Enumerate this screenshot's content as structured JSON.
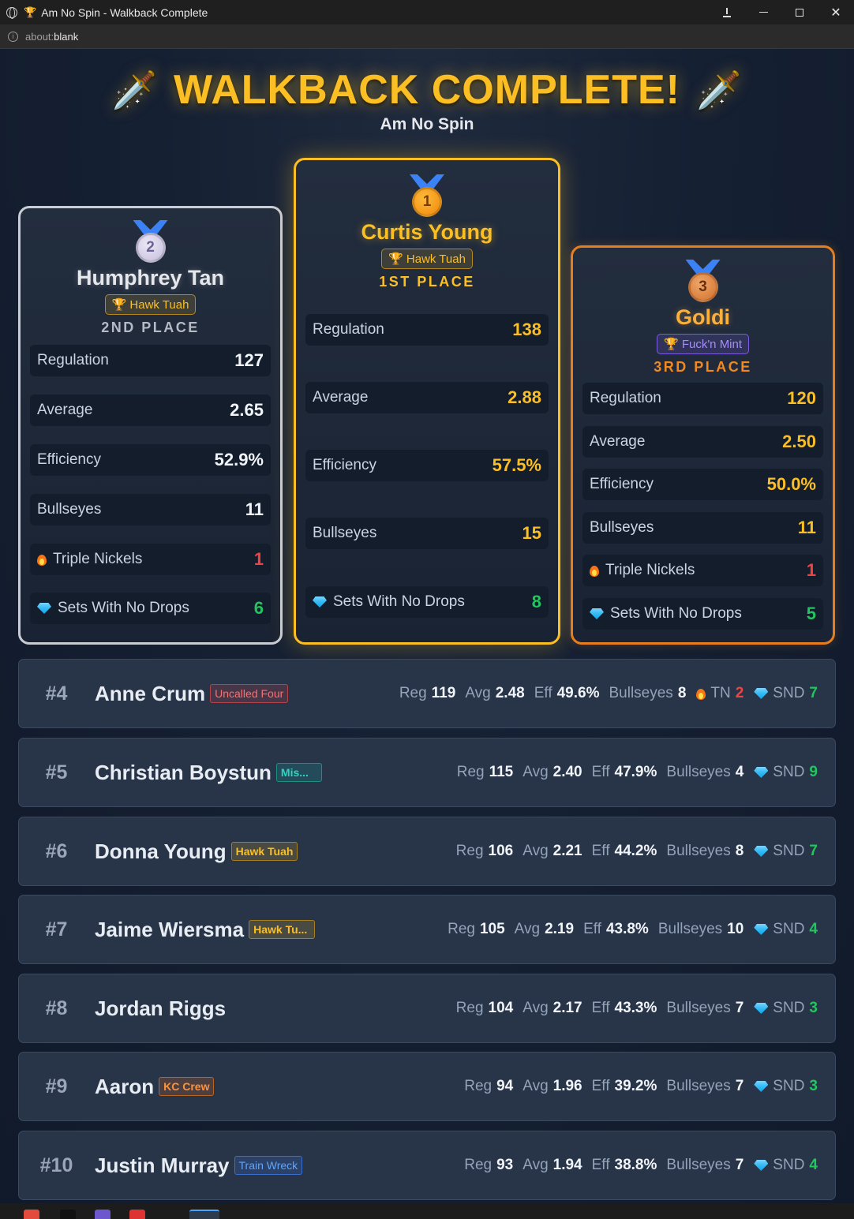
{
  "window": {
    "title": "Am No Spin - Walkback Complete",
    "tab_icon": "trophy-icon",
    "address": {
      "scheme": "about:",
      "host": "blank"
    }
  },
  "header": {
    "title": "WALKBACK COMPLETE!",
    "title_icon": "dagger-icon",
    "subtitle": "Am No Spin"
  },
  "podium": {
    "first": {
      "medal": "1",
      "name": "Curtis Young",
      "team": "Hawk Tuah",
      "place": "1ST PLACE",
      "stats": {
        "regulation": {
          "label": "Regulation",
          "value": "138"
        },
        "average": {
          "label": "Average",
          "value": "2.88"
        },
        "efficiency": {
          "label": "Efficiency",
          "value": "57.5%"
        },
        "bullseyes": {
          "label": "Bullseyes",
          "value": "15"
        },
        "snd": {
          "label": "Sets With No Drops",
          "value": "8"
        }
      }
    },
    "second": {
      "medal": "2",
      "name": "Humphrey Tan",
      "team": "Hawk Tuah",
      "place": "2ND PLACE",
      "stats": {
        "regulation": {
          "label": "Regulation",
          "value": "127"
        },
        "average": {
          "label": "Average",
          "value": "2.65"
        },
        "efficiency": {
          "label": "Efficiency",
          "value": "52.9%"
        },
        "bullseyes": {
          "label": "Bullseyes",
          "value": "11"
        },
        "tn": {
          "label": "Triple Nickels",
          "value": "1"
        },
        "snd": {
          "label": "Sets With No Drops",
          "value": "6"
        }
      }
    },
    "third": {
      "medal": "3",
      "name": "Goldi",
      "team": "Fuck'n Mint",
      "place": "3RD PLACE",
      "stats": {
        "regulation": {
          "label": "Regulation",
          "value": "120"
        },
        "average": {
          "label": "Average",
          "value": "2.50"
        },
        "efficiency": {
          "label": "Efficiency",
          "value": "50.0%"
        },
        "bullseyes": {
          "label": "Bullseyes",
          "value": "11"
        },
        "tn": {
          "label": "Triple Nickels",
          "value": "1"
        },
        "snd": {
          "label": "Sets With No Drops",
          "value": "5"
        }
      }
    }
  },
  "labels": {
    "reg": "Reg",
    "avg": "Avg",
    "eff": "Eff",
    "bulls": "Bullseyes",
    "tn": "TN",
    "snd": "SND"
  },
  "rows": [
    {
      "rank": "#4",
      "name": "Anne Crum",
      "team": "Uncalled Four",
      "reg": "119",
      "avg": "2.48",
      "eff": "49.6%",
      "bulls": "8",
      "tn": "2",
      "snd": "7"
    },
    {
      "rank": "#5",
      "name": "Christian Boystun",
      "team": "Mis...",
      "reg": "115",
      "avg": "2.40",
      "eff": "47.9%",
      "bulls": "4",
      "snd": "9"
    },
    {
      "rank": "#6",
      "name": "Donna Young",
      "team": "Hawk Tuah",
      "reg": "106",
      "avg": "2.21",
      "eff": "44.2%",
      "bulls": "8",
      "snd": "7"
    },
    {
      "rank": "#7",
      "name": "Jaime Wiersma",
      "team": "Hawk Tu...",
      "reg": "105",
      "avg": "2.19",
      "eff": "43.8%",
      "bulls": "10",
      "snd": "4"
    },
    {
      "rank": "#8",
      "name": "Jordan Riggs",
      "team": "",
      "reg": "104",
      "avg": "2.17",
      "eff": "43.3%",
      "bulls": "7",
      "snd": "3"
    },
    {
      "rank": "#9",
      "name": "Aaron",
      "team": "KC Crew",
      "reg": "94",
      "avg": "1.96",
      "eff": "39.2%",
      "bulls": "7",
      "snd": "3"
    },
    {
      "rank": "#10",
      "name": "Justin Murray",
      "team": "Train Wreck",
      "reg": "93",
      "avg": "1.94",
      "eff": "38.8%",
      "bulls": "7",
      "snd": "4"
    }
  ],
  "colors": {
    "gold": "#fbbf24",
    "silver": "#c9ccd3",
    "bronze": "#e67e1f",
    "green": "#22c55e",
    "red": "#ef4444"
  }
}
